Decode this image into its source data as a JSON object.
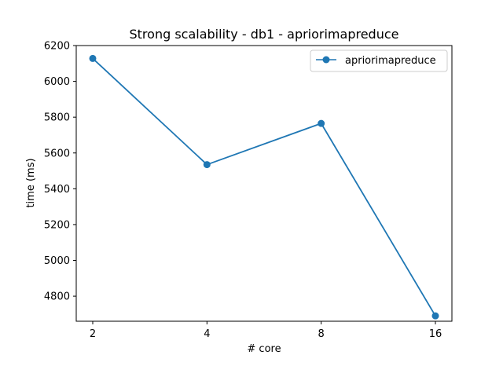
{
  "chart_data": {
    "type": "line",
    "title": "Strong scalability - db1 - apriorimapreduce",
    "xlabel": "# core",
    "ylabel": "time (ms)",
    "categories": [
      "2",
      "4",
      "8",
      "16"
    ],
    "series": [
      {
        "name": "apriorimapreduce",
        "values": [
          6128,
          5535,
          5765,
          4690
        ],
        "color": "#1f77b4",
        "marker": "circle"
      }
    ],
    "yticks": [
      4800,
      5000,
      5200,
      5400,
      5600,
      5800,
      6000,
      6200
    ],
    "ylim": [
      4660,
      6200
    ],
    "grid": false,
    "legend_position": "top-right"
  }
}
